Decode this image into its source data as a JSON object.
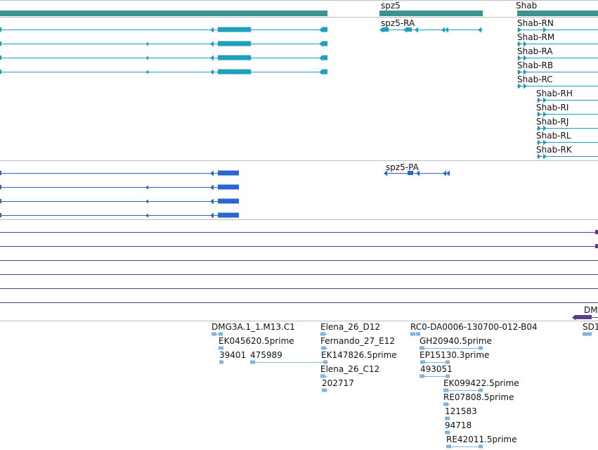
{
  "colors": {
    "gene": "#3c9191",
    "mrna": "#1e9fbe",
    "protein": "#2a66cc",
    "other": "#5b3e88",
    "est": "#7fb4de"
  },
  "genes": [
    {
      "label": "",
      "name": "gene-left"
    },
    {
      "label": "spz5",
      "name": "gene-spz5"
    },
    {
      "label": "Shab",
      "name": "gene-shab"
    }
  ],
  "mrna_labels": [
    "spz5-RA",
    "Shab-RN",
    "Shab-RM",
    "Shab-RA",
    "Shab-RB",
    "Shab-RC",
    "Shab-RH",
    "Shab-RI",
    "Shab-RJ",
    "Shab-RL",
    "Shab-RK"
  ],
  "protein_labels": [
    "spz5-PA"
  ],
  "other_labels": [
    "DM"
  ],
  "est_labels": [
    "DMG3A.1_1.M13.C1",
    "EK045620.5prime",
    "39401",
    "475989",
    "Elena_26_D12",
    "Fernando_27_E12",
    "EK147826.5prime",
    "Elena_26_C12",
    "202717",
    "RC0-DA0006-130700-012-B04",
    "GH20940.5prime",
    "EP15130.3prime",
    "493051",
    "EK099422.5prime",
    "RE07808.5prime",
    "121583",
    "94718",
    "RE42011.5prime",
    "SD1"
  ]
}
